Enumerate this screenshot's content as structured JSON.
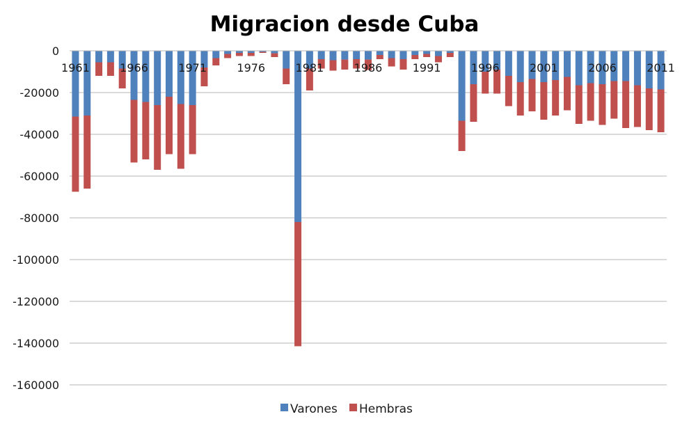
{
  "chart_data": {
    "type": "bar",
    "stacked": true,
    "title": "Migracion desde Cuba",
    "xlabel": "",
    "ylabel": "",
    "ylim": [
      -160000,
      0
    ],
    "yticks": [
      0,
      -20000,
      -40000,
      -60000,
      -80000,
      -100000,
      -120000,
      -140000,
      -160000
    ],
    "ytick_labels": [
      "0",
      "-20000",
      "-40000",
      "-60000",
      "-80000",
      "-100000",
      "-120000",
      "-140000",
      "-160000"
    ],
    "grid": true,
    "legend_position": "bottom",
    "x": [
      1961,
      1962,
      1963,
      1964,
      1965,
      1966,
      1967,
      1968,
      1969,
      1970,
      1971,
      1972,
      1973,
      1974,
      1975,
      1976,
      1977,
      1978,
      1979,
      1980,
      1981,
      1982,
      1983,
      1984,
      1985,
      1986,
      1987,
      1988,
      1989,
      1990,
      1991,
      1992,
      1993,
      1994,
      1995,
      1996,
      1997,
      1998,
      1999,
      2000,
      2001,
      2002,
      2003,
      2004,
      2005,
      2006,
      2007,
      2008,
      2009,
      2010,
      2011
    ],
    "xtick_labels": [
      "1961",
      "1966",
      "1971",
      "1976",
      "1981",
      "1986",
      "1991",
      "1996",
      "2001",
      "2006",
      "2011"
    ],
    "series": [
      {
        "name": "Varones",
        "color": "#4f81bd",
        "values": [
          -31500,
          -31000,
          -5500,
          -5500,
          -8500,
          -23500,
          -24500,
          -26000,
          -22000,
          -25500,
          -26000,
          -8000,
          -3500,
          -1500,
          -1000,
          -1000,
          -500,
          -1200,
          -8500,
          -82000,
          -8500,
          -4000,
          -4500,
          -4200,
          -4000,
          -4200,
          -2000,
          -3500,
          -4000,
          -2000,
          -1500,
          -2500,
          -1000,
          -33500,
          -16000,
          -10000,
          -9000,
          -12000,
          -15000,
          -13500,
          -15000,
          -14000,
          -12500,
          -16500,
          -15500,
          -16000,
          -14500,
          -14500,
          -16500,
          -18000,
          -18500
        ]
      },
      {
        "name": "Hembras",
        "color": "#c0504d",
        "values": [
          -36000,
          -35000,
          -6500,
          -6500,
          -9500,
          -30000,
          -27500,
          -31000,
          -27500,
          -31000,
          -23500,
          -9000,
          -3500,
          -2000,
          -1500,
          -1500,
          -500,
          -1800,
          -7500,
          -59500,
          -10500,
          -4500,
          -5000,
          -4800,
          -4500,
          -5000,
          -2000,
          -4000,
          -5000,
          -2000,
          -1500,
          -3000,
          -2000,
          -14500,
          -18000,
          -10500,
          -11500,
          -14500,
          -16000,
          -15500,
          -18000,
          -17000,
          -16000,
          -18500,
          -18000,
          -19500,
          -18000,
          -22500,
          -20000,
          -20000,
          -20500
        ]
      }
    ]
  }
}
